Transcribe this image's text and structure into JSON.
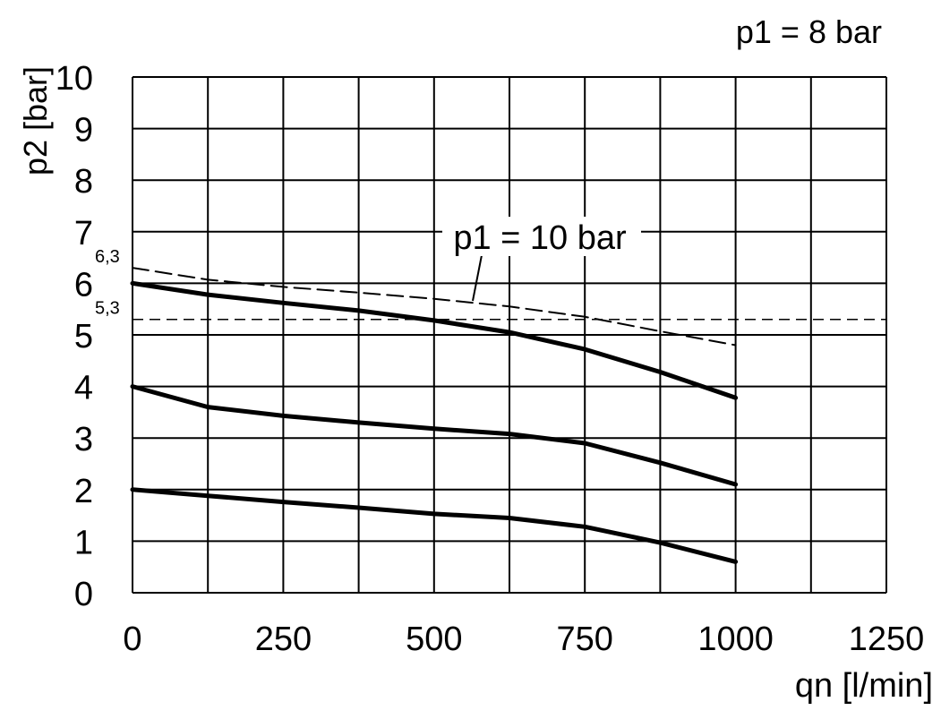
{
  "chart_data": {
    "type": "line",
    "subtitle": "p1 = 8 bar",
    "x_label": "qn [l/min]",
    "y_label": "p2 [bar]",
    "x": [
      0,
      125,
      250,
      375,
      500,
      625,
      750,
      875,
      1000
    ],
    "series": [
      {
        "color": "#000000",
        "style": "solid",
        "values": [
          6.0,
          5.78,
          5.62,
          5.47,
          5.28,
          5.05,
          4.72,
          4.28,
          3.78
        ]
      },
      {
        "color": "#000000",
        "style": "solid",
        "values": [
          4.0,
          3.6,
          3.43,
          3.3,
          3.18,
          3.08,
          2.9,
          2.52,
          2.1
        ]
      },
      {
        "color": "#000000",
        "style": "solid",
        "values": [
          2.0,
          1.88,
          1.76,
          1.65,
          1.53,
          1.45,
          1.28,
          0.97,
          0.6
        ]
      },
      {
        "name": "p1 = 10 bar",
        "color": "#000000",
        "style": "dashed",
        "values": [
          6.3,
          6.07,
          5.93,
          5.82,
          5.7,
          5.55,
          5.35,
          5.07,
          4.8
        ]
      }
    ],
    "annotations": [
      {
        "text": "6,3",
        "y": 6.3
      },
      {
        "text": "5,3",
        "y": 5.3
      }
    ],
    "reference_line": 5.3,
    "xlim": [
      0,
      1250
    ],
    "ylim": [
      0,
      10
    ],
    "xticks": [
      0,
      250,
      500,
      750,
      1000,
      1250
    ],
    "x_minor_grid": [
      125,
      375,
      625,
      875,
      1125
    ],
    "yticks": [
      0,
      1,
      2,
      3,
      4,
      5,
      6,
      7,
      8,
      9,
      10
    ],
    "grid": true
  }
}
